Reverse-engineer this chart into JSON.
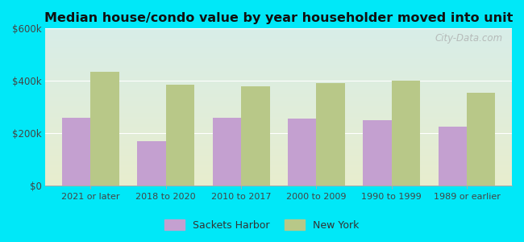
{
  "title": "Median house/condo value by year householder moved into unit",
  "categories": [
    "2021 or later",
    "2018 to 2020",
    "2010 to 2017",
    "2000 to 2009",
    "1990 to 1999",
    "1989 or earlier"
  ],
  "sackets_harbor": [
    260000,
    170000,
    260000,
    255000,
    250000,
    225000
  ],
  "new_york": [
    435000,
    385000,
    380000,
    390000,
    400000,
    355000
  ],
  "sackets_color": "#c4a0d0",
  "ny_color": "#b8c888",
  "bg_outer": "#00e8f8",
  "bg_chart_top": "#d8ede8",
  "bg_chart_bottom": "#e8eece",
  "ylim": [
    0,
    600000
  ],
  "yticks": [
    0,
    200000,
    400000,
    600000
  ],
  "ytick_labels": [
    "$0",
    "$200k",
    "$400k",
    "$600k"
  ],
  "watermark": "City-Data.com",
  "legend_labels": [
    "Sackets Harbor",
    "New York"
  ],
  "bar_width": 0.38
}
